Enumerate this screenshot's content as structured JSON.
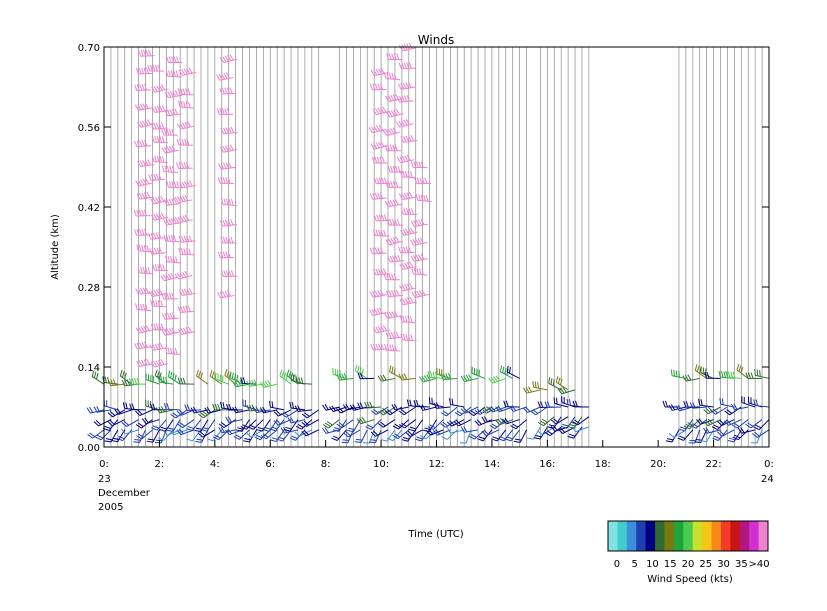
{
  "chart_data": {
    "type": "wind-barb",
    "title": "Winds",
    "xlabel": "Time (UTC)",
    "ylabel": "Altitude (km)",
    "xlim": [
      0,
      24
    ],
    "ylim": [
      0.0,
      0.7
    ],
    "x_ticks": [
      {
        "v": 0,
        "label": "0:"
      },
      {
        "v": 2,
        "label": "2:"
      },
      {
        "v": 4,
        "label": "4:"
      },
      {
        "v": 6,
        "label": "6:"
      },
      {
        "v": 8,
        "label": "8:"
      },
      {
        "v": 10,
        "label": "10:"
      },
      {
        "v": 12,
        "label": "12:"
      },
      {
        "v": 14,
        "label": "14:"
      },
      {
        "v": 16,
        "label": "16:"
      },
      {
        "v": 18,
        "label": "18:"
      },
      {
        "v": 20,
        "label": "20:"
      },
      {
        "v": 22,
        "label": "22:"
      },
      {
        "v": 24,
        "label": "0:"
      }
    ],
    "y_ticks": [
      {
        "v": 0.0,
        "label": "0.00"
      },
      {
        "v": 0.14,
        "label": "0.14"
      },
      {
        "v": 0.28,
        "label": "0.28"
      },
      {
        "v": 0.42,
        "label": "0.42"
      },
      {
        "v": 0.56,
        "label": "0.56"
      },
      {
        "v": 0.7,
        "label": "0.70"
      }
    ],
    "date_start_lines": [
      "23",
      "December",
      "2005"
    ],
    "date_end_lines": [
      "24"
    ],
    "grid": "vertical lines at each profile time",
    "colorbar": {
      "title": "Wind Speed (kts)",
      "labels": [
        "0",
        "5",
        "10",
        "15",
        "20",
        "25",
        "30",
        "35",
        ">40"
      ],
      "colors": [
        "#7fe3e3",
        "#40cccc",
        "#3a8fd6",
        "#1e3fb0",
        "#000080",
        "#2e6b2e",
        "#7a7a10",
        "#1fa33a",
        "#4ccc4c",
        "#c8e02c",
        "#f5c518",
        "#f58a18",
        "#f03c28",
        "#c81414",
        "#b01880",
        "#d030d0",
        "#f080d0"
      ]
    },
    "segments": [
      {
        "t0": 0.0,
        "t1": 7.75,
        "dt": 0.25,
        "low": 0.03,
        "mid": 0.065,
        "upper": 0.11
      },
      {
        "t0": 8.5,
        "t1": 15.25,
        "dt": 0.25,
        "low": 0.03,
        "mid": 0.07,
        "upper": 0.12
      },
      {
        "t0": 15.75,
        "t1": 17.5,
        "dt": 0.25,
        "low": 0.035,
        "mid": 0.07,
        "upper": 0.1
      },
      {
        "t0": 20.75,
        "t1": 24.0,
        "dt": 0.25,
        "low": 0.03,
        "mid": 0.07,
        "upper": 0.12
      }
    ],
    "upper_columns": [
      {
        "t": 1.75,
        "y0": 0.14,
        "y1": 0.7,
        "speed": 45
      },
      {
        "t": 2.25,
        "y0": 0.14,
        "y1": 0.66,
        "speed": 45
      },
      {
        "t": 2.75,
        "y0": 0.16,
        "y1": 0.68,
        "speed": 45
      },
      {
        "t": 3.25,
        "y0": 0.2,
        "y1": 0.67,
        "speed": 45
      },
      {
        "t": 4.75,
        "y0": 0.26,
        "y1": 0.7,
        "speed": 45
      },
      {
        "t": 10.25,
        "y0": 0.17,
        "y1": 0.66,
        "speed": 45
      },
      {
        "t": 10.75,
        "y0": 0.16,
        "y1": 0.7,
        "speed": 45
      },
      {
        "t": 11.25,
        "y0": 0.18,
        "y1": 0.7,
        "speed": 45
      },
      {
        "t": 11.75,
        "y0": 0.26,
        "y1": 0.5,
        "speed": 45
      }
    ]
  }
}
